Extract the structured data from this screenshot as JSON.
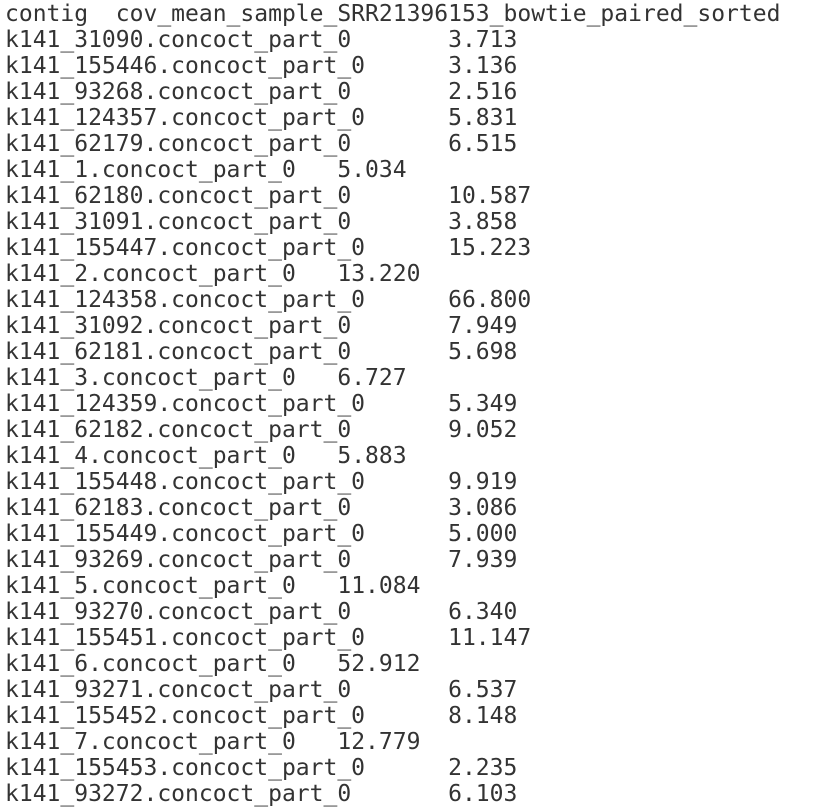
{
  "colors": {
    "background": "#ffffff",
    "text": "#333333"
  },
  "terminal": {
    "header": {
      "contig": "contig",
      "coverage": "cov_mean_sample_SRR21396153_bowtie_paired_sorted"
    },
    "rows": [
      {
        "contig": "k141_31090.concoct_part_0",
        "value": "3.713"
      },
      {
        "contig": "k141_155446.concoct_part_0",
        "value": "3.136"
      },
      {
        "contig": "k141_93268.concoct_part_0",
        "value": "2.516"
      },
      {
        "contig": "k141_124357.concoct_part_0",
        "value": "5.831"
      },
      {
        "contig": "k141_62179.concoct_part_0",
        "value": "6.515"
      },
      {
        "contig": "k141_1.concoct_part_0",
        "value": "5.034"
      },
      {
        "contig": "k141_62180.concoct_part_0",
        "value": "10.587"
      },
      {
        "contig": "k141_31091.concoct_part_0",
        "value": "3.858"
      },
      {
        "contig": "k141_155447.concoct_part_0",
        "value": "15.223"
      },
      {
        "contig": "k141_2.concoct_part_0",
        "value": "13.220"
      },
      {
        "contig": "k141_124358.concoct_part_0",
        "value": "66.800"
      },
      {
        "contig": "k141_31092.concoct_part_0",
        "value": "7.949"
      },
      {
        "contig": "k141_62181.concoct_part_0",
        "value": "5.698"
      },
      {
        "contig": "k141_3.concoct_part_0",
        "value": "6.727"
      },
      {
        "contig": "k141_124359.concoct_part_0",
        "value": "5.349"
      },
      {
        "contig": "k141_62182.concoct_part_0",
        "value": "9.052"
      },
      {
        "contig": "k141_4.concoct_part_0",
        "value": "5.883"
      },
      {
        "contig": "k141_155448.concoct_part_0",
        "value": "9.919"
      },
      {
        "contig": "k141_62183.concoct_part_0",
        "value": "3.086"
      },
      {
        "contig": "k141_155449.concoct_part_0",
        "value": "5.000"
      },
      {
        "contig": "k141_93269.concoct_part_0",
        "value": "7.939"
      },
      {
        "contig": "k141_5.concoct_part_0",
        "value": "11.084"
      },
      {
        "contig": "k141_93270.concoct_part_0",
        "value": "6.340"
      },
      {
        "contig": "k141_155451.concoct_part_0",
        "value": "11.147"
      },
      {
        "contig": "k141_6.concoct_part_0",
        "value": "52.912"
      },
      {
        "contig": "k141_93271.concoct_part_0",
        "value": "6.537"
      },
      {
        "contig": "k141_155452.concoct_part_0",
        "value": "8.148"
      },
      {
        "contig": "k141_7.concoct_part_0",
        "value": "12.779"
      },
      {
        "contig": "k141_155453.concoct_part_0",
        "value": "2.235"
      },
      {
        "contig": "k141_93272.concoct_part_0",
        "value": "6.103"
      }
    ]
  }
}
